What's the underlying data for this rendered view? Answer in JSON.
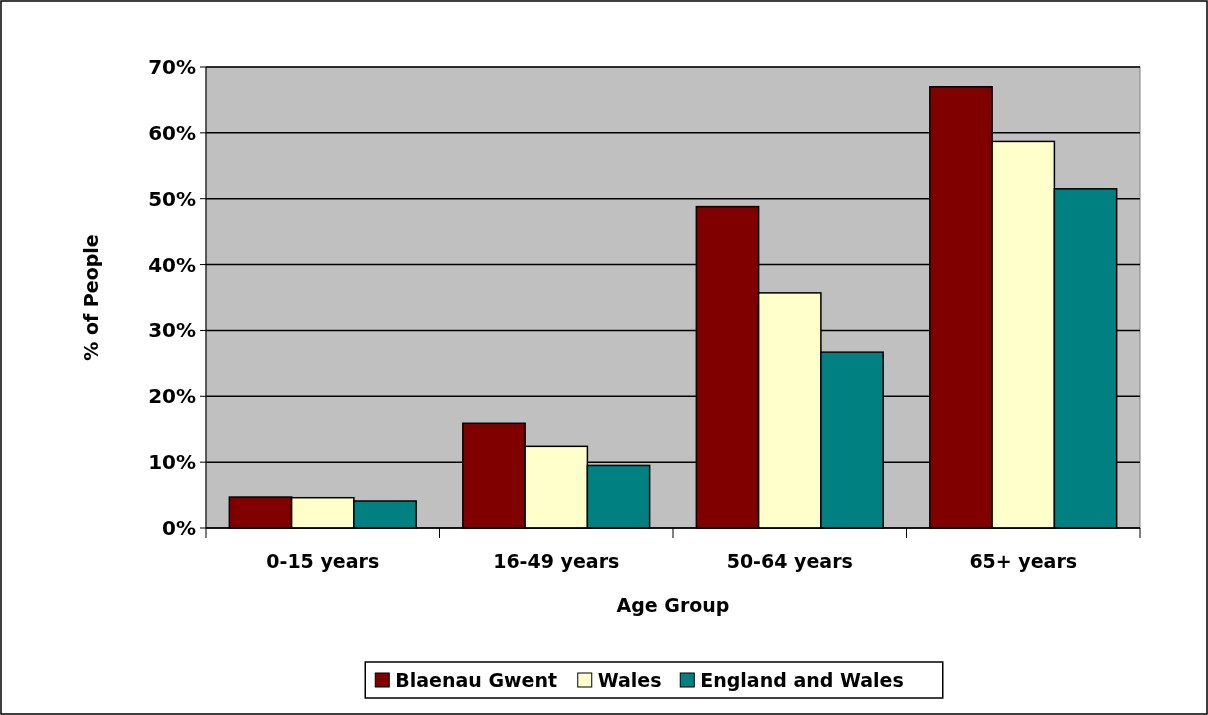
{
  "chart_data": {
    "type": "bar",
    "xlabel": "Age Group",
    "ylabel": "% of People",
    "categories": [
      "0-15 years",
      "16-49 years",
      "50-64 years",
      "65+ years"
    ],
    "series": [
      {
        "name": "Blaenau Gwent",
        "color": "#800000",
        "values": [
          4.7,
          15.9,
          48.8,
          67.0
        ]
      },
      {
        "name": "Wales",
        "color": "#ffffcc",
        "values": [
          4.6,
          12.4,
          35.7,
          58.7
        ]
      },
      {
        "name": "England and Wales",
        "color": "#008080",
        "values": [
          4.1,
          9.5,
          26.7,
          51.5
        ]
      }
    ],
    "ylim": [
      0,
      70
    ],
    "yticks": [
      {
        "value": 0,
        "label": "0%"
      },
      {
        "value": 10,
        "label": "10%"
      },
      {
        "value": 20,
        "label": "20%"
      },
      {
        "value": 30,
        "label": "30%"
      },
      {
        "value": 40,
        "label": "40%"
      },
      {
        "value": 50,
        "label": "50%"
      },
      {
        "value": 60,
        "label": "60%"
      },
      {
        "value": 70,
        "label": "70%"
      }
    ],
    "grid": "y",
    "legend": "bottom"
  }
}
